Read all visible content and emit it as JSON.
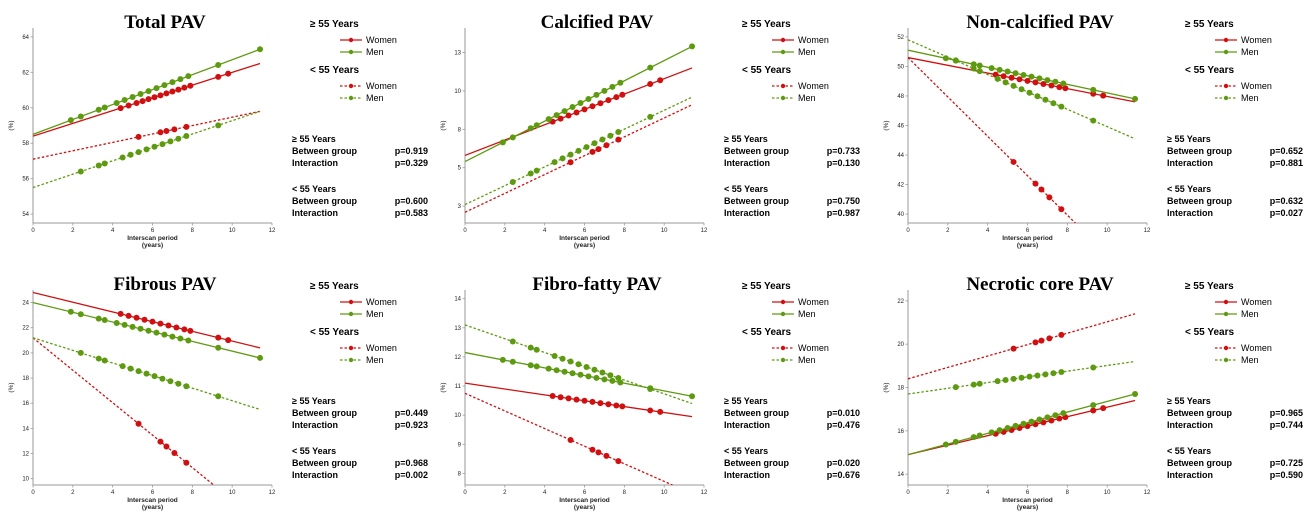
{
  "colors": {
    "women": "#d01010",
    "men": "#5e9a10"
  },
  "chart_data": [
    {
      "type": "line",
      "title": "Total PAV",
      "ylabel": "(%)",
      "xlabel_line1": "Interscan period",
      "xlabel_line2": "(years)",
      "xlim": [
        0,
        12
      ],
      "ylim": [
        53.5,
        64.5
      ],
      "xticks": [
        "0",
        "2",
        "4",
        "6",
        "8",
        "10",
        "12"
      ],
      "yticks": [
        "54",
        "56",
        "58",
        "60",
        "62",
        "64"
      ],
      "legend": {
        "group1": "≥ 55 Years",
        "group2": "< 55 Years",
        "women": "Women",
        "men": "Men"
      },
      "series": [
        {
          "name": "Women",
          "group": "≥ 55 Years",
          "dashed": false,
          "x": [
            0,
            11.4
          ],
          "y": [
            58.4,
            62.5
          ],
          "points_x": [
            4.4,
            4.8,
            5.2,
            5.5,
            5.8,
            6.1,
            6.4,
            6.7,
            7.0,
            7.3,
            7.6,
            7.9,
            9.3,
            9.8
          ]
        },
        {
          "name": "Men",
          "group": "≥ 55 Years",
          "dashed": false,
          "x": [
            0,
            11.4
          ],
          "y": [
            58.5,
            63.3
          ],
          "points_x": [
            1.9,
            2.4,
            3.3,
            3.6,
            4.2,
            4.6,
            5.0,
            5.4,
            5.8,
            6.2,
            6.6,
            7.0,
            7.4,
            7.8,
            9.3,
            11.4
          ]
        },
        {
          "name": "Women",
          "group": "< 55 Years",
          "dashed": true,
          "x": [
            0,
            11.4
          ],
          "y": [
            57.1,
            59.8
          ],
          "points_x": [
            5.3,
            6.4,
            6.7,
            7.1,
            7.7
          ]
        },
        {
          "name": "Men",
          "group": "< 55 Years",
          "dashed": true,
          "x": [
            0,
            11.4
          ],
          "y": [
            55.5,
            59.8
          ],
          "points_x": [
            2.4,
            3.3,
            3.6,
            4.5,
            4.9,
            5.3,
            5.7,
            6.1,
            6.5,
            6.9,
            7.3,
            7.7,
            9.3
          ]
        }
      ],
      "stats": [
        {
          "heading": "≥ 55 Years",
          "rows": [
            {
              "label": "Between group",
              "value": "p=0.919"
            },
            {
              "label": "Interaction",
              "value": "p=0.329"
            }
          ]
        },
        {
          "heading": "< 55 Years",
          "rows": [
            {
              "label": "Between group",
              "value": "p=0.600"
            },
            {
              "label": "Interaction",
              "value": "p=0.583"
            }
          ]
        }
      ]
    },
    {
      "type": "line",
      "title": "Calcified PAV",
      "ylabel": "(%)",
      "xlabel_line1": "Interscan period",
      "xlabel_line2": "(years)",
      "xlim": [
        0,
        12
      ],
      "ylim": [
        1.9,
        14.6
      ],
      "xticks": [
        "0",
        "2",
        "4",
        "6",
        "8",
        "10",
        "12"
      ],
      "yticks": [
        "3",
        "5",
        "8",
        "10",
        "13"
      ],
      "ytick_values": [
        3,
        5.5,
        8,
        10.5,
        13
      ],
      "legend": {
        "group1": "≥ 55 Years",
        "group2": "< 55 Years",
        "women": "Women",
        "men": "Men"
      },
      "series": [
        {
          "name": "Women",
          "group": "≥ 55 Years",
          "dashed": false,
          "x": [
            0,
            11.4
          ],
          "y": [
            6.3,
            12.0
          ],
          "points_x": [
            4.4,
            4.8,
            5.2,
            5.6,
            6.0,
            6.4,
            6.8,
            7.2,
            7.6,
            7.9,
            9.3,
            9.8
          ]
        },
        {
          "name": "Men",
          "group": "≥ 55 Years",
          "dashed": false,
          "x": [
            0,
            11.4
          ],
          "y": [
            5.9,
            13.4
          ],
          "points_x": [
            1.9,
            2.4,
            3.3,
            3.6,
            4.2,
            4.6,
            5.0,
            5.4,
            5.8,
            6.2,
            6.6,
            7.0,
            7.4,
            7.8,
            9.3,
            11.4
          ]
        },
        {
          "name": "Women",
          "group": "< 55 Years",
          "dashed": true,
          "x": [
            0,
            11.4
          ],
          "y": [
            2.6,
            9.6
          ],
          "points_x": [
            5.3,
            6.4,
            6.7,
            7.1,
            7.7
          ]
        },
        {
          "name": "Men",
          "group": "< 55 Years",
          "dashed": true,
          "x": [
            0,
            11.4
          ],
          "y": [
            3.1,
            10.1
          ],
          "points_x": [
            2.4,
            3.3,
            3.6,
            4.5,
            4.9,
            5.3,
            5.7,
            6.1,
            6.5,
            6.9,
            7.3,
            7.7,
            9.3
          ]
        }
      ],
      "stats": [
        {
          "heading": "≥ 55 Years",
          "rows": [
            {
              "label": "Between group",
              "value": "p=0.733"
            },
            {
              "label": "Interaction",
              "value": "p=0.130"
            }
          ]
        },
        {
          "heading": "< 55 Years",
          "rows": [
            {
              "label": "Between group",
              "value": "p=0.750"
            },
            {
              "label": "Interaction",
              "value": "p=0.987"
            }
          ]
        }
      ]
    },
    {
      "type": "line",
      "title": "Non-calcified PAV",
      "ylabel": "(%)",
      "xlabel_line1": "Interscan period",
      "xlabel_line2": "(years)",
      "xlim": [
        0,
        12
      ],
      "ylim": [
        39.4,
        52.6
      ],
      "xticks": [
        "0",
        "2",
        "4",
        "6",
        "8",
        "10",
        "12"
      ],
      "yticks": [
        "40",
        "42",
        "44",
        "46",
        "48",
        "50",
        "52"
      ],
      "legend": {
        "group1": "≥ 55 Years",
        "group2": "< 55 Years",
        "women": "Women",
        "men": "Men"
      },
      "series": [
        {
          "name": "Women",
          "group": "≥ 55 Years",
          "dashed": false,
          "x": [
            0,
            11.4
          ],
          "y": [
            50.6,
            47.6
          ],
          "points_x": [
            4.4,
            4.8,
            5.2,
            5.6,
            6.0,
            6.4,
            6.8,
            7.2,
            7.6,
            7.9,
            9.3,
            9.8
          ]
        },
        {
          "name": "Men",
          "group": "≥ 55 Years",
          "dashed": false,
          "x": [
            0,
            11.4
          ],
          "y": [
            51.1,
            47.8
          ],
          "points_x": [
            1.9,
            2.4,
            3.3,
            3.6,
            4.2,
            4.6,
            5.0,
            5.4,
            5.8,
            6.2,
            6.6,
            7.0,
            7.4,
            7.8,
            9.3,
            11.4
          ]
        },
        {
          "name": "Women",
          "group": "< 55 Years",
          "dashed": true,
          "x": [
            0,
            11.4
          ],
          "y": [
            50.6,
            35.4
          ],
          "points_x": [
            5.3,
            6.4,
            6.7,
            7.1,
            7.7
          ]
        },
        {
          "name": "Men",
          "group": "< 55 Years",
          "dashed": true,
          "x": [
            0,
            11.4
          ],
          "y": [
            51.8,
            45.1
          ],
          "points_x": [
            2.4,
            3.3,
            3.6,
            4.5,
            4.9,
            5.3,
            5.7,
            6.1,
            6.5,
            6.9,
            7.3,
            7.7,
            9.3
          ]
        }
      ],
      "stats": [
        {
          "heading": "≥ 55 Years",
          "rows": [
            {
              "label": "Between group",
              "value": "p=0.652"
            },
            {
              "label": "Interaction",
              "value": "p=0.881"
            }
          ]
        },
        {
          "heading": "< 55 Years",
          "rows": [
            {
              "label": "Between group",
              "value": "p=0.632"
            },
            {
              "label": "Interaction",
              "value": "p=0.027"
            }
          ]
        }
      ]
    },
    {
      "type": "line",
      "title": "Fibrous PAV",
      "ylabel": "(%)",
      "xlabel_line1": "Interscan period",
      "xlabel_line2": "(years)",
      "xlim": [
        0,
        12
      ],
      "ylim": [
        9.5,
        25.0
      ],
      "xticks": [
        "0",
        "2",
        "4",
        "6",
        "8",
        "10",
        "12"
      ],
      "yticks": [
        "10",
        "12",
        "14",
        "16",
        "18",
        "20",
        "22",
        "24"
      ],
      "legend": {
        "group1": "≥ 55 Years",
        "group2": "< 55 Years",
        "women": "Women",
        "men": "Men"
      },
      "series": [
        {
          "name": "Women",
          "group": "≥ 55 Years",
          "dashed": false,
          "x": [
            0,
            11.4
          ],
          "y": [
            24.8,
            20.4
          ],
          "points_x": [
            4.4,
            4.8,
            5.2,
            5.6,
            6.0,
            6.4,
            6.8,
            7.2,
            7.6,
            7.9,
            9.3,
            9.8
          ]
        },
        {
          "name": "Men",
          "group": "≥ 55 Years",
          "dashed": false,
          "x": [
            0,
            11.4
          ],
          "y": [
            24.0,
            19.6
          ],
          "points_x": [
            1.9,
            2.4,
            3.3,
            3.6,
            4.2,
            4.6,
            5.0,
            5.4,
            5.8,
            6.2,
            6.6,
            7.0,
            7.4,
            7.8,
            9.3,
            11.4
          ]
        },
        {
          "name": "Women",
          "group": "< 55 Years",
          "dashed": true,
          "x": [
            0,
            11.4
          ],
          "y": [
            21.2,
            6.5
          ],
          "points_x": [
            5.3,
            6.4,
            6.7,
            7.1,
            7.7
          ]
        },
        {
          "name": "Men",
          "group": "< 55 Years",
          "dashed": true,
          "x": [
            0,
            11.4
          ],
          "y": [
            21.2,
            15.5
          ],
          "points_x": [
            2.4,
            3.3,
            3.6,
            4.5,
            4.9,
            5.3,
            5.7,
            6.1,
            6.5,
            6.9,
            7.3,
            7.7,
            9.3
          ]
        }
      ],
      "stats": [
        {
          "heading": "≥ 55 Years",
          "rows": [
            {
              "label": "Between group",
              "value": "p=0.449"
            },
            {
              "label": "Interaction",
              "value": "p=0.923"
            }
          ]
        },
        {
          "heading": "< 55 Years",
          "rows": [
            {
              "label": "Between group",
              "value": "p=0.968"
            },
            {
              "label": "Interaction",
              "value": "p=0.002"
            }
          ]
        }
      ]
    },
    {
      "type": "line",
      "title": "Fibro-fatty PAV",
      "ylabel": "(%)",
      "xlabel_line1": "Interscan period",
      "xlabel_line2": "(years)",
      "xlim": [
        0,
        12
      ],
      "ylim": [
        7.6,
        14.3
      ],
      "xticks": [
        "0",
        "2",
        "4",
        "6",
        "8",
        "10",
        "12"
      ],
      "yticks": [
        "8",
        "9",
        "10",
        "11",
        "12",
        "13",
        "14"
      ],
      "legend": {
        "group1": "≥ 55 Years",
        "group2": "< 55 Years",
        "women": "Women",
        "men": "Men"
      },
      "series": [
        {
          "name": "Women",
          "group": "≥ 55 Years",
          "dashed": false,
          "x": [
            0,
            11.4
          ],
          "y": [
            11.1,
            9.95
          ],
          "points_x": [
            4.4,
            4.8,
            5.2,
            5.6,
            6.0,
            6.4,
            6.8,
            7.2,
            7.6,
            7.9,
            9.3,
            9.8
          ]
        },
        {
          "name": "Men",
          "group": "≥ 55 Years",
          "dashed": false,
          "x": [
            0,
            11.4
          ],
          "y": [
            12.15,
            10.65
          ],
          "points_x": [
            1.9,
            2.4,
            3.3,
            3.6,
            4.2,
            4.6,
            5.0,
            5.4,
            5.8,
            6.2,
            6.6,
            7.0,
            7.4,
            7.8,
            9.3,
            11.4
          ]
        },
        {
          "name": "Women",
          "group": "< 55 Years",
          "dashed": true,
          "x": [
            0,
            11.4
          ],
          "y": [
            10.75,
            7.3
          ],
          "points_x": [
            5.3,
            6.4,
            6.7,
            7.1,
            7.7
          ]
        },
        {
          "name": "Men",
          "group": "< 55 Years",
          "dashed": true,
          "x": [
            0,
            11.4
          ],
          "y": [
            13.1,
            10.4
          ],
          "points_x": [
            2.4,
            3.3,
            3.6,
            4.5,
            4.9,
            5.3,
            5.7,
            6.1,
            6.5,
            6.9,
            7.3,
            7.7,
            9.3
          ]
        }
      ],
      "stats": [
        {
          "heading": "≥ 55 Years",
          "rows": [
            {
              "label": "Between group",
              "value": "p=0.010"
            },
            {
              "label": "Interaction",
              "value": "p=0.476"
            }
          ]
        },
        {
          "heading": "< 55 Years",
          "rows": [
            {
              "label": "Between group",
              "value": "p=0.020"
            },
            {
              "label": "Interaction",
              "value": "p=0.676"
            }
          ]
        }
      ]
    },
    {
      "type": "line",
      "title": "Necrotic core PAV",
      "ylabel": "(%)",
      "xlabel_line1": "Interscan period",
      "xlabel_line2": "(years)",
      "xlim": [
        0,
        12
      ],
      "ylim": [
        13.5,
        22.5
      ],
      "xticks": [
        "0",
        "2",
        "4",
        "6",
        "8",
        "10",
        "12"
      ],
      "yticks": [
        "14",
        "16",
        "18",
        "20",
        "22"
      ],
      "legend": {
        "group1": "≥ 55 Years",
        "group2": "< 55 Years",
        "women": "Women",
        "men": "Men"
      },
      "series": [
        {
          "name": "Women",
          "group": "≥ 55 Years",
          "dashed": false,
          "x": [
            0,
            11.4
          ],
          "y": [
            14.9,
            17.4
          ],
          "points_x": [
            4.4,
            4.8,
            5.2,
            5.6,
            6.0,
            6.4,
            6.8,
            7.2,
            7.6,
            7.9,
            9.3,
            9.8
          ]
        },
        {
          "name": "Men",
          "group": "≥ 55 Years",
          "dashed": false,
          "x": [
            0,
            11.4
          ],
          "y": [
            14.9,
            17.7
          ],
          "points_x": [
            1.9,
            2.4,
            3.3,
            3.6,
            4.2,
            4.6,
            5.0,
            5.4,
            5.8,
            6.2,
            6.6,
            7.0,
            7.4,
            7.8,
            9.3,
            11.4
          ]
        },
        {
          "name": "Women",
          "group": "< 55 Years",
          "dashed": true,
          "x": [
            0,
            11.4
          ],
          "y": [
            18.4,
            21.4
          ],
          "points_x": [
            5.3,
            6.4,
            6.7,
            7.1,
            7.7
          ]
        },
        {
          "name": "Men",
          "group": "< 55 Years",
          "dashed": true,
          "x": [
            0,
            11.4
          ],
          "y": [
            17.7,
            19.2
          ],
          "points_x": [
            2.4,
            3.3,
            3.6,
            4.5,
            4.9,
            5.3,
            5.7,
            6.1,
            6.5,
            6.9,
            7.3,
            7.7,
            9.3
          ]
        }
      ],
      "stats": [
        {
          "heading": "≥ 55 Years",
          "rows": [
            {
              "label": "Between group",
              "value": "p=0.965"
            },
            {
              "label": "Interaction",
              "value": "p=0.744"
            }
          ]
        },
        {
          "heading": "< 55 Years",
          "rows": [
            {
              "label": "Between group",
              "value": "p=0.725"
            },
            {
              "label": "Interaction",
              "value": "p=0.590"
            }
          ]
        }
      ]
    }
  ]
}
